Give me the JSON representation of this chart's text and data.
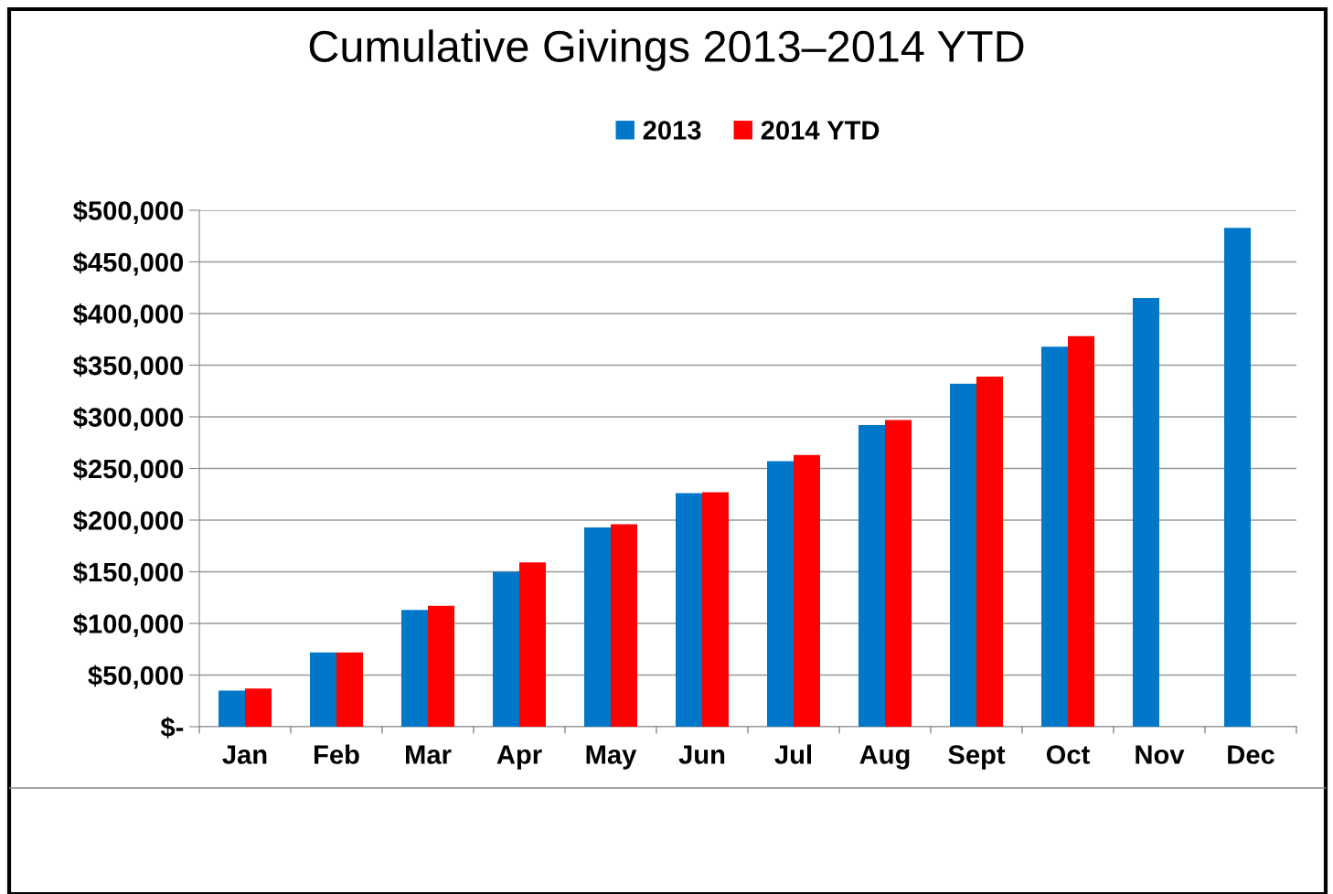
{
  "chart_data": {
    "type": "bar",
    "title": "Cumulative Givings 2013–2014 YTD",
    "categories": [
      "Jan",
      "Feb",
      "Mar",
      "Apr",
      "May",
      "Jun",
      "Jul",
      "Aug",
      "Sept",
      "Oct",
      "Nov",
      "Dec"
    ],
    "series": [
      {
        "name": "2013",
        "color": "#0077c8",
        "values": [
          35000,
          72000,
          113000,
          150000,
          193000,
          226000,
          257000,
          292000,
          332000,
          368000,
          415000,
          483000
        ]
      },
      {
        "name": "2014 YTD",
        "color": "#ff0000",
        "values": [
          37000,
          72000,
          117000,
          159000,
          196000,
          227000,
          263000,
          297000,
          339000,
          378000,
          null,
          null
        ]
      }
    ],
    "ylim": [
      0,
      500000
    ],
    "yticks": [
      {
        "value": 0,
        "label": "$-"
      },
      {
        "value": 50000,
        "label": "$50,000"
      },
      {
        "value": 100000,
        "label": "$100,000"
      },
      {
        "value": 150000,
        "label": "$150,000"
      },
      {
        "value": 200000,
        "label": "$200,000"
      },
      {
        "value": 250000,
        "label": "$250,000"
      },
      {
        "value": 300000,
        "label": "$300,000"
      },
      {
        "value": 350000,
        "label": "$350,000"
      },
      {
        "value": 400000,
        "label": "$400,000"
      },
      {
        "value": 450000,
        "label": "$450,000"
      },
      {
        "value": 500000,
        "label": "$500,000"
      }
    ],
    "grid": "y",
    "legend": "top"
  }
}
